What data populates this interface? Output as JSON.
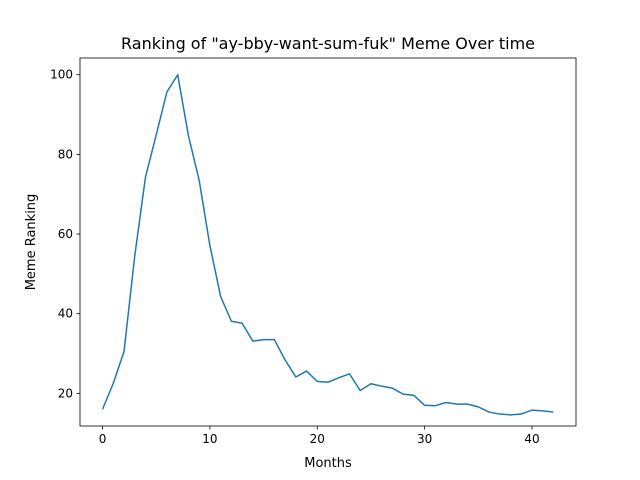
{
  "chart_data": {
    "type": "line",
    "title": "Ranking of \"ay-bby-want-sum-fuk\" Meme Over time",
    "xlabel": "Months",
    "ylabel": "Meme Ranking",
    "xlim": [
      -2.1,
      44.1
    ],
    "ylim": [
      11.8,
      104.2
    ],
    "xticks": [
      0,
      10,
      20,
      30,
      40
    ],
    "yticks": [
      20,
      40,
      60,
      80,
      100
    ],
    "grid": false,
    "line_color": "#1f77b4",
    "series": [
      {
        "x": [
          0,
          1,
          2,
          3,
          4,
          5,
          6,
          7,
          8,
          9,
          10,
          11,
          12,
          13,
          14,
          15,
          16,
          17,
          18,
          19,
          20,
          21,
          22,
          23,
          24,
          25,
          26,
          27,
          28,
          29,
          30,
          31,
          32,
          33,
          34,
          35,
          36,
          37,
          38,
          39,
          40,
          41,
          42
        ],
        "values": [
          16,
          22.5,
          30.5,
          54.5,
          74.3,
          84.9,
          95.7,
          100,
          84.7,
          73.5,
          57.1,
          44.3,
          38.1,
          37.6,
          33.1,
          33.5,
          33.5,
          28.4,
          24.1,
          25.6,
          23,
          22.8,
          23.9,
          24.9,
          20.7,
          22.4,
          21.8,
          21.3,
          19.8,
          19.5,
          17,
          16.9,
          17.7,
          17.3,
          17.3,
          16.6,
          15.3,
          14.8,
          14.6,
          14.8,
          15.8,
          15.6,
          15.3
        ]
      }
    ]
  }
}
